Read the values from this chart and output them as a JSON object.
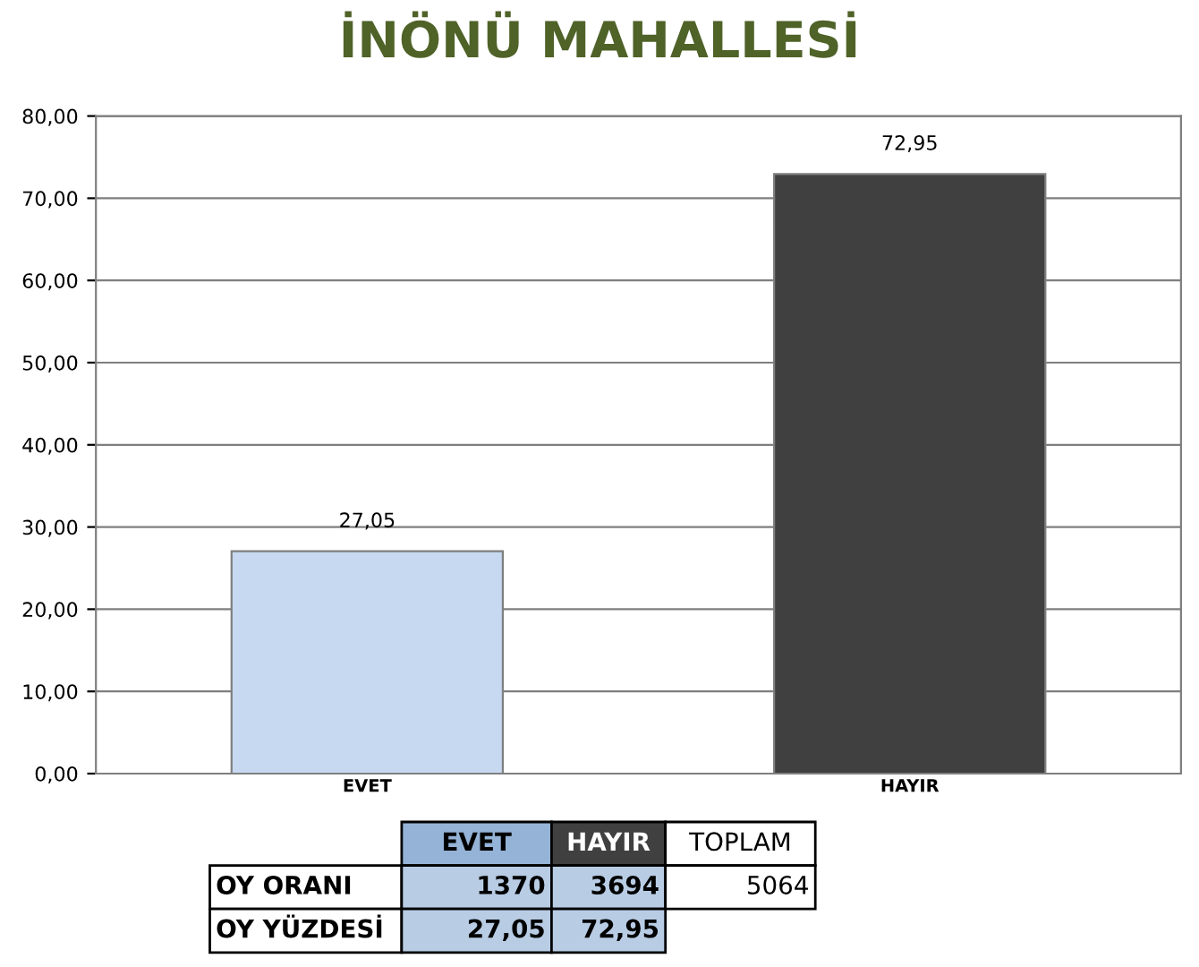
{
  "chart_data": {
    "type": "bar",
    "title": "İNÖNÜ MAHALLESİ",
    "categories": [
      "EVET",
      "HAYIR"
    ],
    "values": [
      27.05,
      72.95
    ],
    "colors": [
      "#c6d9f1",
      "#404040"
    ],
    "value_labels": [
      "27,05",
      "72,95"
    ],
    "ylim": [
      0,
      80
    ],
    "yticks": [
      {
        "value": 0,
        "label": "0,00"
      },
      {
        "value": 10,
        "label": "10,00"
      },
      {
        "value": 20,
        "label": "20,00"
      },
      {
        "value": 30,
        "label": "30,00"
      },
      {
        "value": 40,
        "label": "40,00"
      },
      {
        "value": 50,
        "label": "50,00"
      },
      {
        "value": 60,
        "label": "60,00"
      },
      {
        "value": 70,
        "label": "70,00"
      },
      {
        "value": 80,
        "label": "80,00"
      }
    ],
    "grid": "y",
    "annotations": [
      "EVET",
      "HAYIR",
      "TOPLAM",
      "OY ORANI",
      "1370",
      "3694",
      "5064",
      "OY YÜZDESİ",
      "27,05",
      "72,95"
    ]
  }
}
